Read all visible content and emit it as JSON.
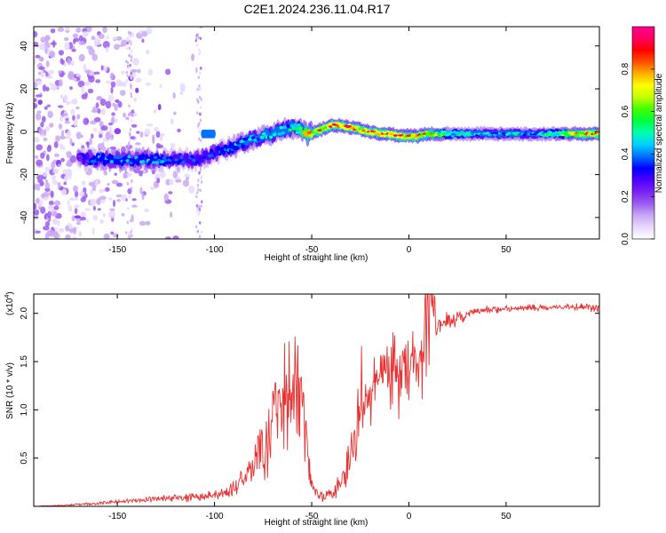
{
  "window": {
    "title": "C2E1.2024.236.11.04.R17"
  },
  "chart_data": [
    {
      "type": "heatmap",
      "title": "C2E1.2024.236.11.04.R17",
      "xlabel": "Height of straight line (km)",
      "ylabel": "Frequency (Hz)",
      "xlim": [
        -193,
        98
      ],
      "ylim": [
        -50,
        49
      ],
      "xticks": [
        -150,
        -100,
        -50,
        0,
        50
      ],
      "xtick_labels": [
        "-150",
        "-100",
        "-50",
        "0",
        "50"
      ],
      "yticks": [
        -40,
        -20,
        0,
        20,
        40
      ],
      "ytick_labels": [
        "-40",
        "-20",
        "0",
        "20",
        "40"
      ],
      "colorbar": {
        "label": "Normalized spectral amplitude",
        "range": [
          0,
          1
        ],
        "ticks": [
          0.0,
          0.2,
          0.4,
          0.6,
          0.8
        ],
        "tick_labels": [
          "0.0",
          "0.2",
          "0.4",
          "0.6",
          "0.8"
        ],
        "colormap": [
          "#ffffff",
          "#e8d8ff",
          "#c9a8f5",
          "#9b5cf0",
          "#7a22f0",
          "#4d00ff",
          "#0000ff",
          "#0070ff",
          "#00d0ff",
          "#00ffb0",
          "#00ff40",
          "#40ff00",
          "#c0ff00",
          "#ffff00",
          "#ffb000",
          "#ff5000",
          "#ff0000",
          "#ff0060",
          "#ff0090"
        ]
      },
      "ridge": {
        "x": [
          -170,
          -160,
          -150,
          -140,
          -130,
          -120,
          -110,
          -100,
          -90,
          -80,
          -70,
          -60,
          -52,
          -45,
          -40,
          -35,
          -30,
          -25,
          -20,
          -15,
          -10,
          -5,
          0,
          5,
          10,
          20,
          30,
          40,
          50,
          60,
          70,
          80,
          90,
          98
        ],
        "y": [
          -12,
          -13,
          -13,
          -13,
          -13,
          -13,
          -13,
          -10,
          -7,
          -3,
          -1,
          2,
          -1,
          1,
          3,
          3,
          2,
          1,
          0,
          -1,
          -1,
          -2,
          -2,
          -2,
          -1,
          -1,
          -1,
          -1,
          -1,
          -1,
          -1,
          -1,
          -1,
          -1
        ],
        "amplitude": [
          0.3,
          0.4,
          0.4,
          0.4,
          0.4,
          0.35,
          0.35,
          0.35,
          0.4,
          0.45,
          0.45,
          0.45,
          0.75,
          0.8,
          0.85,
          0.85,
          0.85,
          0.8,
          0.85,
          0.85,
          0.85,
          0.85,
          0.8,
          0.8,
          0.75,
          0.55,
          0.5,
          0.45,
          0.45,
          0.45,
          0.5,
          0.6,
          0.8,
          0.8
        ]
      },
      "side_patch": {
        "x": [
          -106,
          -100
        ],
        "y": -1,
        "amplitude": 0.4
      }
    },
    {
      "type": "line",
      "xlabel": "Height of straight line (km)",
      "ylabel": "SNR (10 * v/v)",
      "yscale_label": "(x10",
      "yscale_exponent": "4",
      "xlim": [
        -193,
        98
      ],
      "ylim": [
        0,
        2.2
      ],
      "xticks": [
        -150,
        -100,
        -50,
        0,
        50
      ],
      "xtick_labels": [
        "-150",
        "-100",
        "-50",
        "0",
        "50"
      ],
      "yticks": [
        0.5,
        1.0,
        1.5,
        2.0
      ],
      "ytick_labels": [
        "0.5",
        "1.0",
        "1.5",
        "2.0"
      ],
      "line_color": "#e83030",
      "series": [
        {
          "x": [
            -193,
            -180,
            -170,
            -160,
            -150,
            -140,
            -130,
            -120,
            -110,
            -100,
            -95,
            -90,
            -85,
            -80,
            -75,
            -70,
            -65,
            -62,
            -58,
            -55,
            -52,
            -50,
            -47,
            -44,
            -41,
            -38,
            -35,
            -32,
            -29,
            -27,
            -25,
            -23,
            -21,
            -19,
            -17,
            -15,
            -13,
            -11,
            -9,
            -7,
            -5,
            -3,
            -1,
            0,
            2,
            4,
            6,
            8,
            10,
            12,
            14,
            16,
            18,
            20,
            22,
            24,
            26,
            28,
            30,
            35,
            40,
            50,
            60,
            70,
            80,
            90,
            98
          ],
          "y": [
            0.0,
            0.01,
            0.02,
            0.03,
            0.05,
            0.06,
            0.08,
            0.09,
            0.1,
            0.12,
            0.14,
            0.2,
            0.3,
            0.45,
            0.6,
            0.8,
            1.0,
            1.2,
            1.3,
            1.2,
            0.5,
            0.2,
            0.12,
            0.1,
            0.12,
            0.15,
            0.25,
            0.4,
            0.55,
            0.7,
            1.3,
            1.0,
            1.2,
            1.3,
            1.35,
            1.4,
            1.45,
            1.35,
            1.3,
            1.5,
            1.35,
            1.4,
            1.45,
            1.5,
            1.5,
            1.55,
            1.6,
            1.75,
            2.1,
            2.2,
            1.85,
            1.85,
            1.9,
            1.95,
            1.9,
            1.95,
            2.0,
            1.95,
            2.0,
            2.02,
            2.04,
            2.05,
            2.06,
            2.06,
            2.07,
            2.07,
            2.06
          ],
          "noise": [
            0.003,
            0.005,
            0.01,
            0.015,
            0.02,
            0.02,
            0.03,
            0.03,
            0.04,
            0.04,
            0.05,
            0.08,
            0.12,
            0.2,
            0.3,
            0.45,
            0.55,
            0.6,
            0.6,
            0.55,
            0.25,
            0.08,
            0.05,
            0.05,
            0.06,
            0.08,
            0.12,
            0.2,
            0.3,
            0.35,
            0.45,
            0.4,
            0.35,
            0.35,
            0.3,
            0.25,
            0.25,
            0.3,
            0.35,
            0.4,
            0.3,
            0.3,
            0.25,
            0.3,
            0.3,
            0.35,
            0.4,
            0.45,
            0.6,
            0.7,
            0.15,
            0.12,
            0.1,
            0.08,
            0.08,
            0.08,
            0.06,
            0.05,
            0.04,
            0.03,
            0.03,
            0.03,
            0.03,
            0.03,
            0.03,
            0.04,
            0.04
          ]
        }
      ]
    }
  ]
}
